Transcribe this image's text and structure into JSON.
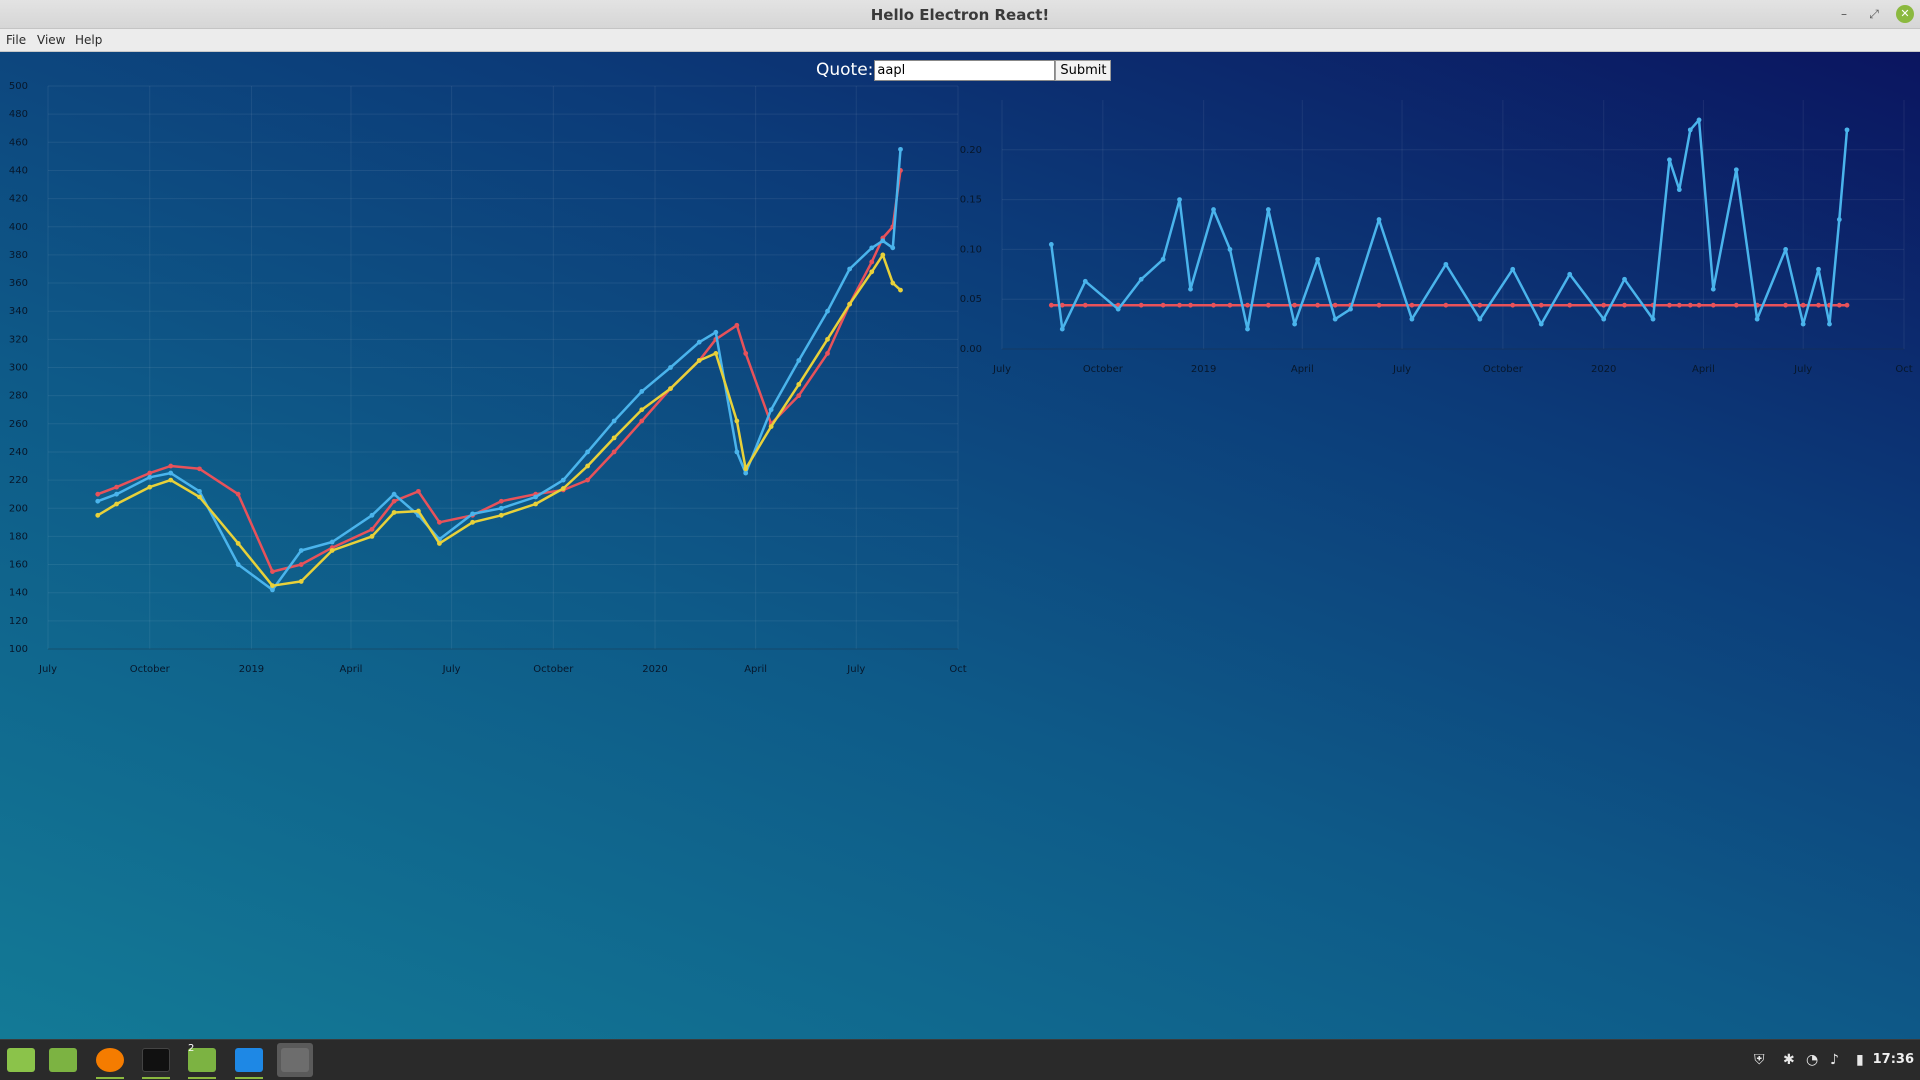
{
  "window": {
    "title": "Hello Electron React!",
    "controls": {
      "minimize": "–",
      "maximize": "⤢",
      "close": "✕"
    }
  },
  "menu": {
    "file": "File",
    "view": "View",
    "help": "Help"
  },
  "form": {
    "label": "Quote:",
    "value": "aapl",
    "submit": "Submit"
  },
  "taskbar": {
    "apps": [
      "mint-menu-icon",
      "folder-icon",
      "firefox-icon",
      "terminal-icon",
      "files-icon",
      "vscode-icon",
      "window-icon"
    ],
    "badge": "2",
    "clock": "17:36"
  },
  "chart_data": [
    {
      "type": "line",
      "x_axis": "date",
      "xlim": [
        "2018-07-01",
        "2020-10-01"
      ],
      "ylim": [
        100,
        500
      ],
      "xticks": [
        "July",
        "October",
        "2019",
        "April",
        "July",
        "October",
        "2020",
        "April",
        "July",
        "Oct"
      ],
      "yticks": [
        100,
        120,
        140,
        160,
        180,
        200,
        220,
        240,
        260,
        280,
        300,
        320,
        340,
        360,
        380,
        400,
        420,
        440,
        460,
        480,
        500
      ],
      "x": [
        "2018-08-15",
        "2018-09-01",
        "2018-10-01",
        "2018-10-20",
        "2018-11-15",
        "2018-12-20",
        "2019-01-20",
        "2019-02-15",
        "2019-03-15",
        "2019-04-20",
        "2019-05-10",
        "2019-06-01",
        "2019-06-20",
        "2019-07-20",
        "2019-08-15",
        "2019-09-15",
        "2019-10-10",
        "2019-11-01",
        "2019-11-25",
        "2019-12-20",
        "2020-01-15",
        "2020-02-10",
        "2020-02-25",
        "2020-03-15",
        "2020-03-23",
        "2020-04-15",
        "2020-05-10",
        "2020-06-05",
        "2020-06-25",
        "2020-07-15",
        "2020-07-25",
        "2020-08-03",
        "2020-08-10"
      ],
      "series": [
        {
          "color": "#e8525a",
          "values": [
            210,
            215,
            225,
            230,
            228,
            210,
            155,
            160,
            172,
            185,
            205,
            212,
            190,
            195,
            205,
            210,
            213,
            220,
            240,
            262,
            285,
            305,
            320,
            330,
            310,
            260,
            280,
            310,
            345,
            375,
            392,
            400,
            440
          ]
        },
        {
          "color": "#4ab4ec",
          "values": [
            205,
            210,
            222,
            225,
            212,
            160,
            142,
            170,
            176,
            195,
            210,
            195,
            178,
            196,
            200,
            208,
            220,
            240,
            262,
            283,
            300,
            318,
            325,
            240,
            225,
            270,
            305,
            340,
            370,
            385,
            390,
            385,
            455
          ]
        },
        {
          "color": "#e8d13a",
          "values": [
            195,
            203,
            215,
            220,
            208,
            175,
            145,
            148,
            170,
            180,
            197,
            198,
            175,
            190,
            195,
            203,
            214,
            230,
            250,
            270,
            285,
            305,
            310,
            262,
            228,
            258,
            288,
            320,
            345,
            368,
            380,
            360,
            355
          ]
        }
      ]
    },
    {
      "type": "line",
      "x_axis": "date",
      "xlim": [
        "2018-07-01",
        "2020-10-01"
      ],
      "ylim": [
        0,
        0.25
      ],
      "xticks": [
        "July",
        "October",
        "2019",
        "April",
        "July",
        "October",
        "2020",
        "April",
        "July",
        "Oct"
      ],
      "yticks": [
        0.0,
        0.05,
        0.1,
        0.15,
        0.2
      ],
      "x": [
        "2018-08-15",
        "2018-08-25",
        "2018-09-15",
        "2018-10-15",
        "2018-11-05",
        "2018-11-25",
        "2018-12-10",
        "2018-12-20",
        "2019-01-10",
        "2019-01-25",
        "2019-02-10",
        "2019-03-01",
        "2019-03-25",
        "2019-04-15",
        "2019-05-01",
        "2019-05-15",
        "2019-06-10",
        "2019-07-10",
        "2019-08-10",
        "2019-09-10",
        "2019-10-10",
        "2019-11-05",
        "2019-12-01",
        "2020-01-01",
        "2020-01-20",
        "2020-02-15",
        "2020-03-01",
        "2020-03-10",
        "2020-03-20",
        "2020-03-28",
        "2020-04-10",
        "2020-05-01",
        "2020-05-20",
        "2020-06-15",
        "2020-07-01",
        "2020-07-15",
        "2020-07-25",
        "2020-08-03",
        "2020-08-10"
      ],
      "series": [
        {
          "color": "#e8525a",
          "values": [
            0.044,
            0.044,
            0.044,
            0.044,
            0.044,
            0.044,
            0.044,
            0.044,
            0.044,
            0.044,
            0.044,
            0.044,
            0.044,
            0.044,
            0.044,
            0.044,
            0.044,
            0.044,
            0.044,
            0.044,
            0.044,
            0.044,
            0.044,
            0.044,
            0.044,
            0.044,
            0.044,
            0.044,
            0.044,
            0.044,
            0.044,
            0.044,
            0.044,
            0.044,
            0.044,
            0.044,
            0.044,
            0.044,
            0.044
          ]
        },
        {
          "color": "#4ab4ec",
          "values": [
            0.105,
            0.02,
            0.068,
            0.04,
            0.07,
            0.09,
            0.15,
            0.06,
            0.14,
            0.1,
            0.02,
            0.14,
            0.025,
            0.09,
            0.03,
            0.04,
            0.13,
            0.03,
            0.085,
            0.03,
            0.08,
            0.025,
            0.075,
            0.03,
            0.07,
            0.03,
            0.19,
            0.16,
            0.22,
            0.23,
            0.06,
            0.18,
            0.03,
            0.1,
            0.025,
            0.08,
            0.025,
            0.13,
            0.22
          ]
        }
      ]
    }
  ]
}
